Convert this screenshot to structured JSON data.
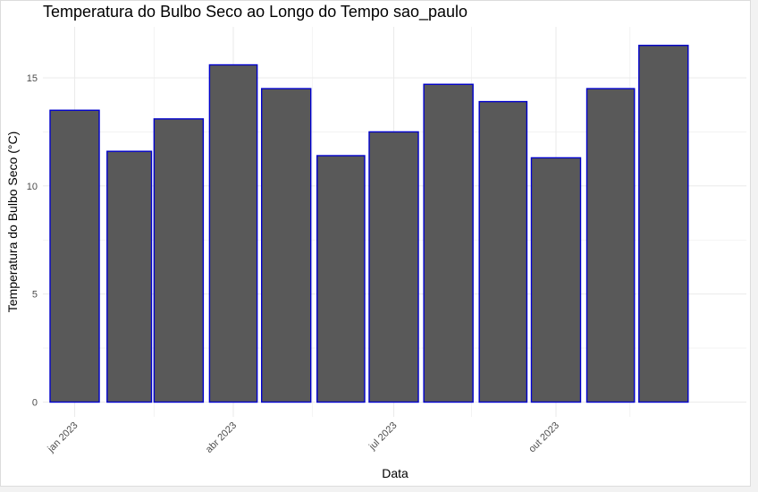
{
  "chart_data": {
    "type": "bar",
    "title": "Temperatura do Bulbo Seco ao Longo do Tempo sao_paulo",
    "xlabel": "Data",
    "ylabel": "Temperatura do Bulbo Seco (°C)",
    "ylim": [
      0,
      17
    ],
    "yticks": [
      0,
      5,
      10,
      15
    ],
    "xlim": [
      "2022-12-14",
      "2024-01-17"
    ],
    "xticks": [
      {
        "date": "2023-01-01",
        "label": "jan 2023"
      },
      {
        "date": "2023-04-01",
        "label": "abr 2023"
      },
      {
        "date": "2023-07-01",
        "label": "jul 2023"
      },
      {
        "date": "2023-10-01",
        "label": "out 2023"
      }
    ],
    "x": [
      "2023-01-01",
      "2023-02-01",
      "2023-03-01",
      "2023-04-01",
      "2023-05-01",
      "2023-06-01",
      "2023-07-01",
      "2023-08-01",
      "2023-09-01",
      "2023-10-01",
      "2023-11-01",
      "2023-12-01"
    ],
    "values": [
      13.5,
      11.6,
      13.1,
      15.6,
      14.5,
      11.4,
      12.5,
      14.7,
      13.9,
      11.3,
      14.5,
      16.5
    ],
    "grid": true,
    "colors": {
      "fill": "#595959",
      "outline": "#0000cc",
      "grid": "#ebebeb"
    }
  }
}
